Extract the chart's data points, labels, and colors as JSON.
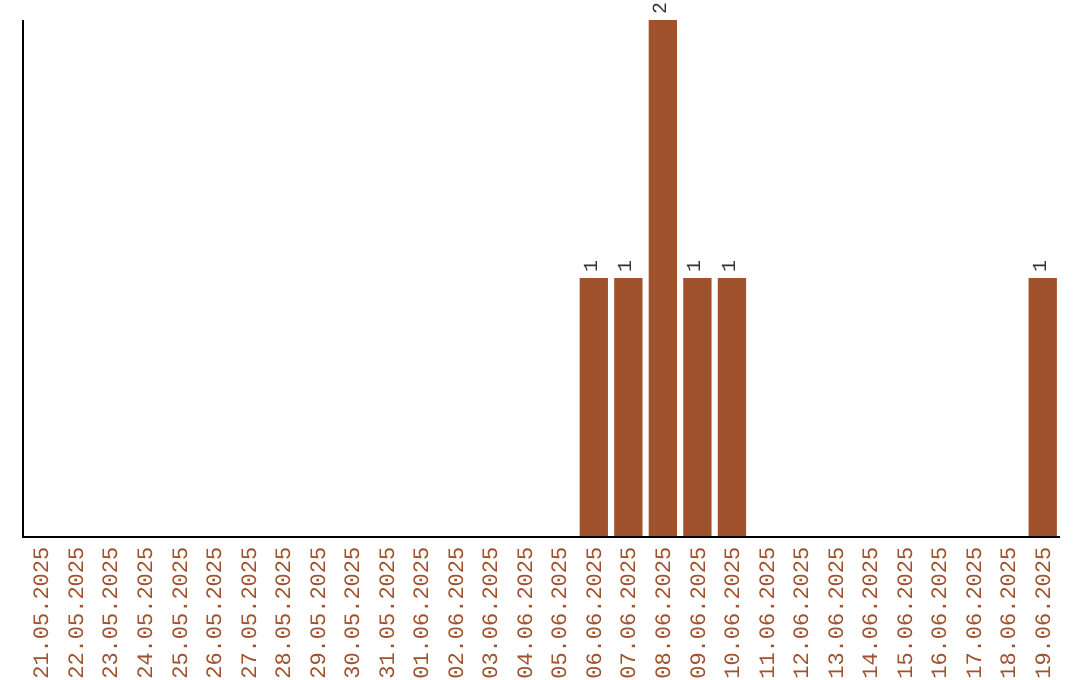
{
  "chart_data": {
    "type": "bar",
    "categories": [
      "21.05.2025",
      "22.05.2025",
      "23.05.2025",
      "24.05.2025",
      "25.05.2025",
      "26.05.2025",
      "27.05.2025",
      "28.05.2025",
      "29.05.2025",
      "30.05.2025",
      "31.05.2025",
      "01.06.2025",
      "02.06.2025",
      "03.06.2025",
      "04.06.2025",
      "05.06.2025",
      "06.06.2025",
      "07.06.2025",
      "08.06.2025",
      "09.06.2025",
      "10.06.2025",
      "11.06.2025",
      "12.06.2025",
      "13.06.2025",
      "14.06.2025",
      "15.06.2025",
      "16.06.2025",
      "17.06.2025",
      "18.06.2025",
      "19.06.2025"
    ],
    "values": [
      null,
      null,
      null,
      null,
      null,
      null,
      null,
      null,
      null,
      null,
      null,
      null,
      null,
      null,
      null,
      null,
      1,
      1,
      2,
      1,
      1,
      null,
      null,
      null,
      null,
      null,
      null,
      null,
      null,
      1
    ],
    "value_labels": [
      null,
      null,
      null,
      null,
      null,
      null,
      null,
      null,
      null,
      null,
      null,
      null,
      null,
      null,
      null,
      null,
      "1",
      "1",
      "2",
      "1",
      "1",
      null,
      null,
      null,
      null,
      null,
      null,
      null,
      null,
      "1"
    ],
    "color": "#a0522d",
    "ylim": [
      0,
      2
    ],
    "tick_labels": "x"
  }
}
